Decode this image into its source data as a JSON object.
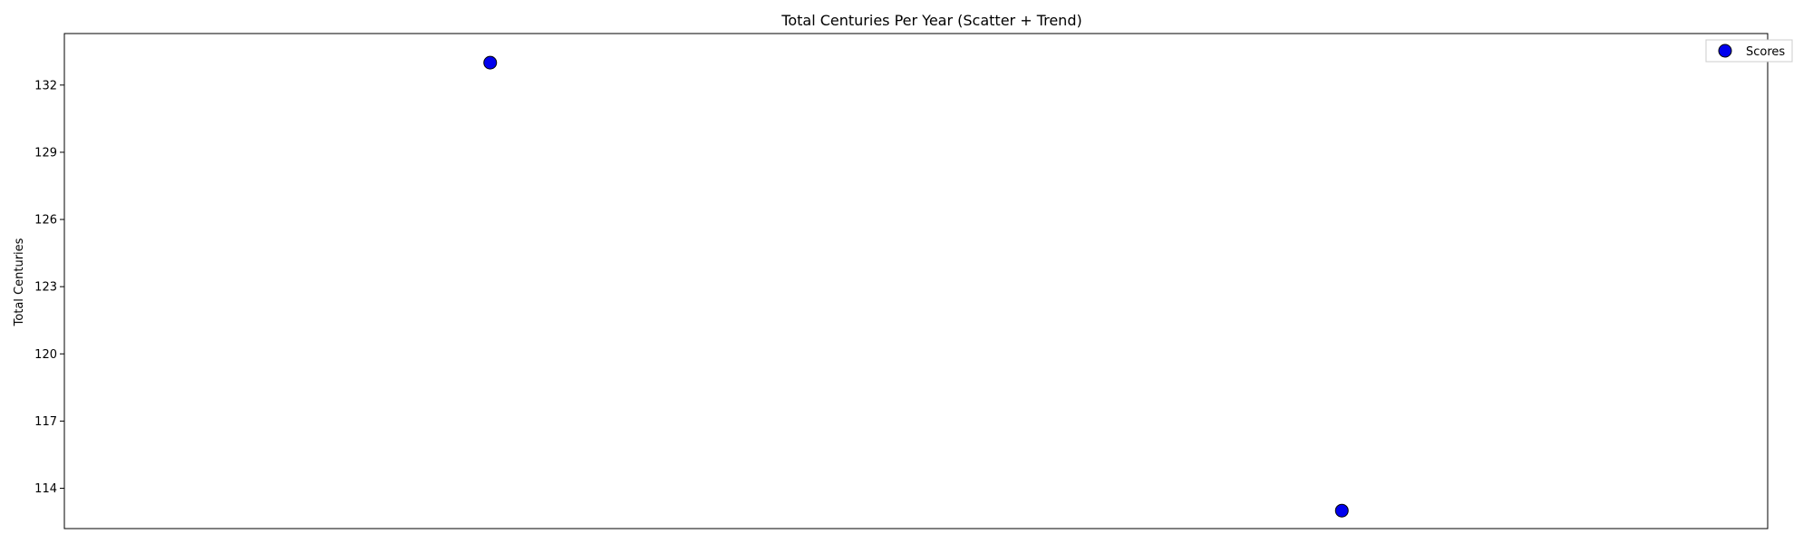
{
  "chart_data": {
    "type": "scatter",
    "title": "Total Centuries Per Year (Scatter + Trend)",
    "xlabel": "",
    "ylabel": "Total Centuries",
    "x_ticks_visible": false,
    "xlim": [
      0,
      4
    ],
    "ylim": [
      112.2,
      134.3
    ],
    "yticks": [
      114,
      117,
      120,
      123,
      126,
      129,
      132
    ],
    "grid": false,
    "legend": {
      "position": "top-right",
      "entries": [
        "Scores"
      ]
    },
    "series": [
      {
        "name": "Scores",
        "marker_color": "#0000ee",
        "marker_edge_color": "#000000",
        "points": [
          {
            "x": 1,
            "y": 133
          },
          {
            "x": 3,
            "y": 113
          }
        ]
      }
    ]
  }
}
